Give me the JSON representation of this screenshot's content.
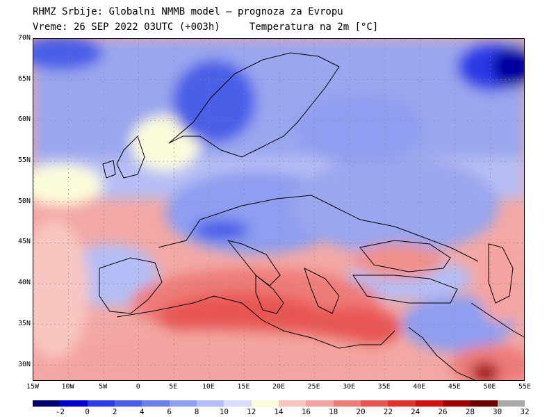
{
  "header": {
    "line1": "RHMZ Srbije: Globalni NMMB model — prognoza za Evropu",
    "line2": "Vreme: 26 SEP 2022 03UTC (+003h)     Temperatura na 2m [°C]"
  },
  "map": {
    "region": "Europe",
    "lon_range": [
      -15,
      55
    ],
    "lat_range": [
      28,
      70
    ],
    "lat_labels": [
      "70N",
      "65N",
      "60N",
      "55N",
      "50N",
      "45N",
      "40N",
      "35N",
      "30N"
    ],
    "lon_labels": [
      "15W",
      "10W",
      "5W",
      "0",
      "5E",
      "10E",
      "15E",
      "20E",
      "25E",
      "30E",
      "35E",
      "40E",
      "45E",
      "50E",
      "55E"
    ]
  },
  "legend": {
    "labels": [
      "-2",
      "0",
      "2",
      "4",
      "6",
      "8",
      "10",
      "12",
      "14",
      "16",
      "18",
      "20",
      "22",
      "24",
      "26",
      "28",
      "30",
      "32"
    ],
    "colors": [
      "#00006e",
      "#0000d2",
      "#2a3ae6",
      "#4a5fe8",
      "#6b7fea",
      "#8e9ef0",
      "#b4bef6",
      "#d8dcfa",
      "#fcfcdc",
      "#f8c6c0",
      "#f4a4a0",
      "#ee7c78",
      "#e85652",
      "#e2302c",
      "#d21010",
      "#a00000",
      "#6e0000",
      "#a8a8a8"
    ]
  }
}
